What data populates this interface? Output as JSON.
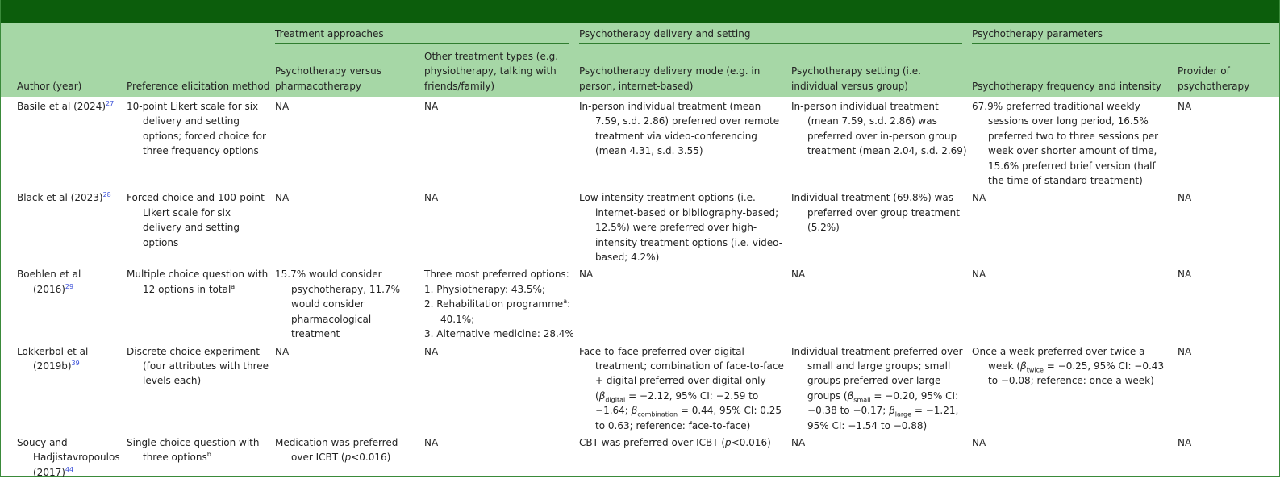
{
  "table": {
    "header": {
      "groups": [
        "Treatment approaches",
        "Psychotherapy delivery and setting",
        "Psychotherapy parameters"
      ],
      "columns": [
        "Author (year)",
        "Preference elicitation method",
        "Psychotherapy versus pharmacotherapy",
        "Other treatment types (e.g. physiotherapy, talking with friends/family)",
        "Psychotherapy delivery mode (e.g. in person, internet-based)",
        "Psychotherapy setting (i.e. individual versus group)",
        "Psychotherapy frequency and intensity",
        "Provider of psychotherapy"
      ]
    },
    "rows": [
      [
        [
          [
            "Basile et al (2024)",
            {
              "ref": "27"
            }
          ]
        ],
        [
          "10-point Likert scale for six delivery and setting options; forced choice for three frequency options"
        ],
        [
          "NA"
        ],
        [
          "NA"
        ],
        [
          "In-person individual treatment (mean 7.59, s.d. 2.86) preferred over remote treatment via video-conferencing (mean 4.31, s.d. 3.55)"
        ],
        [
          "In-person individual treatment (mean 7.59, s.d. 2.86) was preferred over in-person group treatment (mean 2.04, s.d. 2.69)"
        ],
        [
          "67.9% preferred traditional weekly sessions over long period, 16.5% preferred two to three sessions per week over shorter amount of time, 15.6% preferred brief version (half the time of standard treatment)"
        ],
        [
          "NA"
        ]
      ],
      [
        [
          [
            "Black et al (2023)",
            {
              "ref": "28"
            }
          ]
        ],
        [
          "Forced choice and 100-point Likert scale for six delivery and setting options"
        ],
        [
          "NA"
        ],
        [
          "NA"
        ],
        [
          "Low-intensity treatment options (i.e. internet-based or bibliography-based; 12.5%) were preferred over high-intensity treatment options (i.e. video-based; 4.2%)"
        ],
        [
          "Individual treatment (69.8%) was preferred over group treatment (5.2%)"
        ],
        [
          "NA"
        ],
        [
          "NA"
        ]
      ],
      [
        [
          [
            "Boehlen et al (2016)",
            {
              "ref": "29"
            }
          ]
        ],
        [
          [
            "Multiple choice question with 12 options in total",
            {
              "sup": "a"
            }
          ]
        ],
        [
          "15.7% would consider psychotherapy, 11.7% would consider pharmacological treatment"
        ],
        [
          "Three most preferred options:",
          "1. Physiotherapy: 43.5%;",
          [
            "2. Rehabilitation programme",
            {
              "sup": "a"
            },
            ": 40.1%;"
          ],
          "3. Alternative medicine: 28.4%"
        ],
        [
          "NA"
        ],
        [
          "NA"
        ],
        [
          "NA"
        ],
        [
          "NA"
        ]
      ],
      [
        [
          [
            "Lokkerbol et al (2019b)",
            {
              "ref": "39"
            }
          ]
        ],
        [
          "Discrete choice experiment (four attributes with three levels each)"
        ],
        [
          "NA"
        ],
        [
          "NA"
        ],
        [
          [
            "Face-to-face preferred over digital treatment; combination of face-to-face + digital preferred over digital only (",
            {
              "i": "β"
            },
            {
              "sub": "digital"
            },
            " = −2.12, 95% CI: −2.59 to −1.64; ",
            {
              "i": "β"
            },
            {
              "sub": "combination"
            },
            " = 0.44, 95% CI: 0.25 to 0.63; reference: face-to-face)"
          ]
        ],
        [
          [
            "Individual treatment preferred over small and large groups; small groups preferred over large groups (",
            {
              "i": "β"
            },
            {
              "sub": "small"
            },
            " = −0.20, 95% CI: −0.38 to −0.17; ",
            {
              "i": "β"
            },
            {
              "sub": "large"
            },
            " = −1.21, 95% CI: −1.54 to −0.88)"
          ]
        ],
        [
          [
            "Once a week preferred over twice a week (",
            {
              "i": "β"
            },
            {
              "sub": "twice"
            },
            " = −0.25, 95% CI: −0.43 to −0.08; reference: once a week)"
          ]
        ],
        [
          "NA"
        ]
      ],
      [
        [
          [
            "Soucy and Hadjistavropoulos (2017)",
            {
              "ref": "44"
            }
          ]
        ],
        [
          [
            "Single choice question with three options",
            {
              "sup": "b"
            }
          ]
        ],
        [
          [
            "Medication was preferred over ICBT (",
            {
              "i": "p"
            },
            "<0.016)"
          ]
        ],
        [
          "NA"
        ],
        [
          [
            "CBT was preferred over ICBT (",
            {
              "i": "p"
            },
            "<0.016)"
          ]
        ],
        [
          "NA"
        ],
        [
          "NA"
        ],
        [
          "NA"
        ]
      ]
    ]
  }
}
